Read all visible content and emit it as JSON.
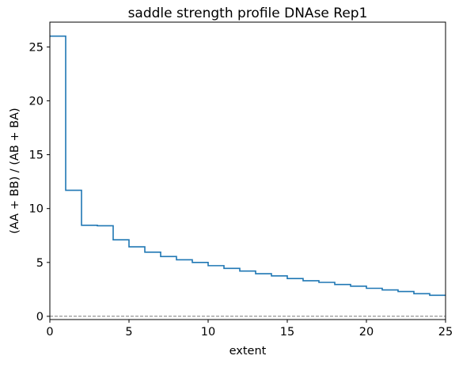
{
  "chart_data": {
    "type": "line",
    "drawstyle": "steps-post",
    "title": "saddle strength profile DNAse Rep1",
    "xlabel": "extent",
    "ylabel": "(AA + BB) / (AB + BA)",
    "xlim": [
      0,
      25
    ],
    "ylim": [
      -0.3,
      27.3
    ],
    "xticks": [
      0,
      5,
      10,
      15,
      20,
      25
    ],
    "yticks": [
      0,
      5,
      10,
      15,
      20,
      25
    ],
    "grid": false,
    "series": [
      {
        "color": "#1f77b4",
        "x": [
          0,
          1,
          2,
          3,
          4,
          5,
          6,
          7,
          8,
          9,
          10,
          11,
          12,
          13,
          14,
          15,
          16,
          17,
          18,
          19,
          20,
          21,
          22,
          23,
          24,
          25
        ],
        "values": [
          26.0,
          11.7,
          8.45,
          8.4,
          7.1,
          6.45,
          5.95,
          5.55,
          5.25,
          5.0,
          4.7,
          4.45,
          4.2,
          3.95,
          3.75,
          3.5,
          3.3,
          3.15,
          2.95,
          2.8,
          2.6,
          2.45,
          2.3,
          2.1,
          1.95,
          1.95
        ]
      }
    ],
    "reference_line": {
      "y": 0,
      "style": "dashed",
      "color": "#777777"
    }
  }
}
